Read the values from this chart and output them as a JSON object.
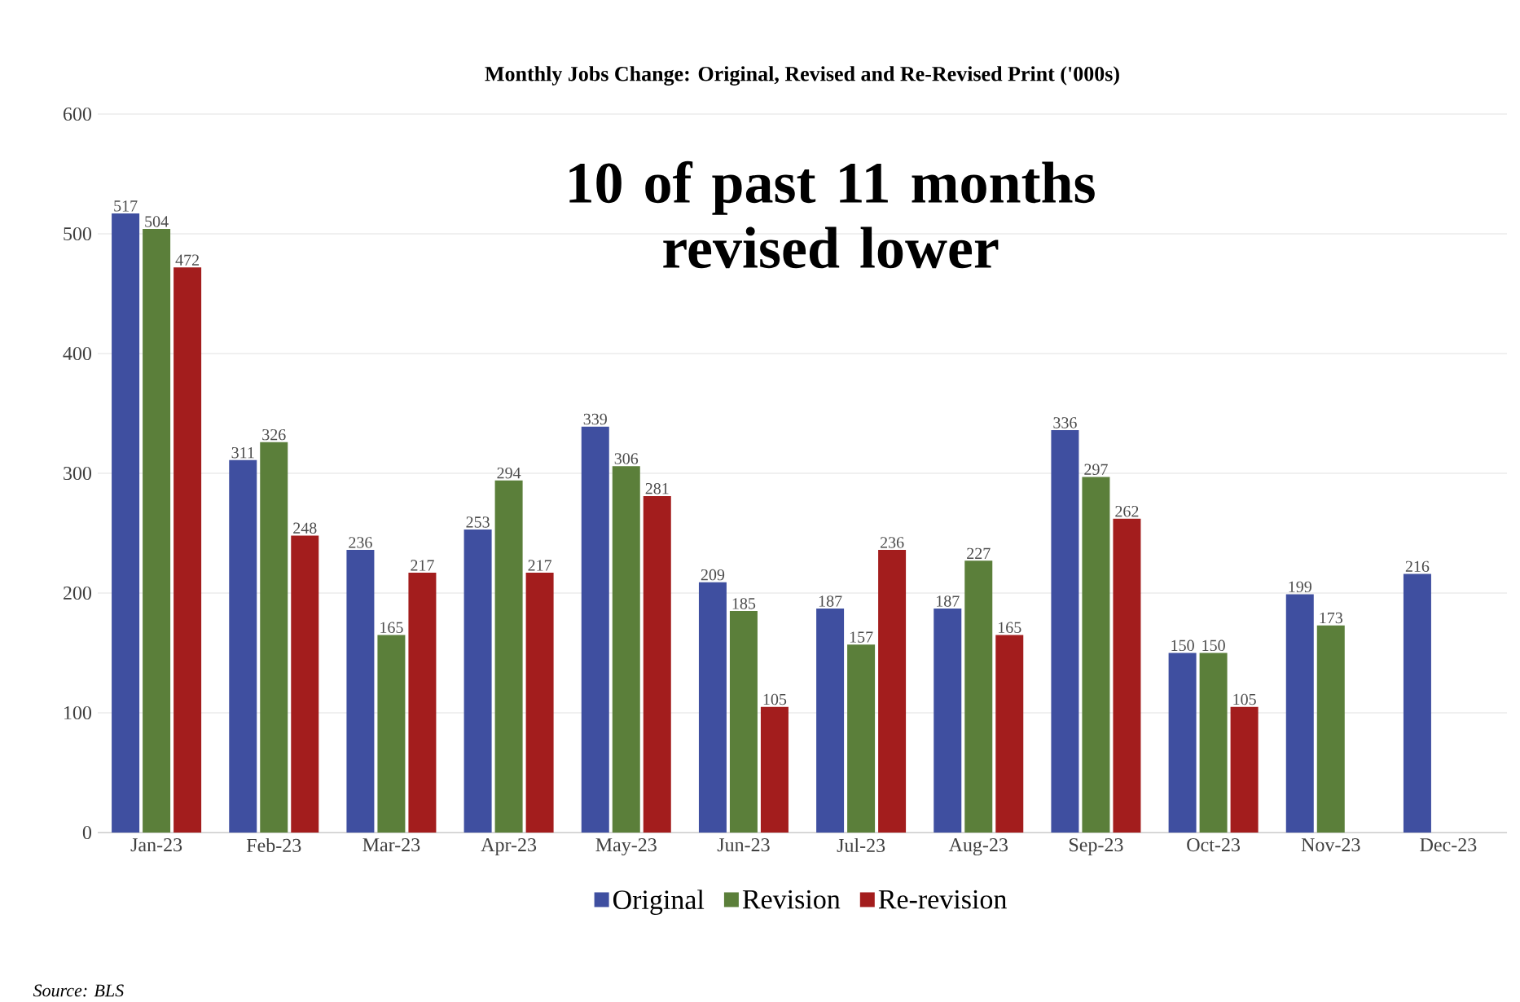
{
  "chart_data": {
    "type": "bar",
    "title": "Monthly Jobs Change: Original, Revised and Re-Revised Print ('000s)",
    "categories": [
      "Jan-23",
      "Feb-23",
      "Mar-23",
      "Apr-23",
      "May-23",
      "Jun-23",
      "Jul-23",
      "Aug-23",
      "Sep-23",
      "Oct-23",
      "Nov-23",
      "Dec-23"
    ],
    "series": [
      {
        "name": "Original",
        "color": "#3f4fa0",
        "values": [
          517,
          311,
          236,
          253,
          339,
          209,
          187,
          187,
          336,
          150,
          199,
          216
        ],
        "value_labels": [
          "517",
          "311",
          "236",
          "253",
          "339",
          "209",
          "187",
          "187",
          "336",
          "150",
          "199",
          "216"
        ]
      },
      {
        "name": "Revision",
        "color": "#5b7f3a",
        "values": [
          504,
          326,
          165,
          294,
          306,
          185,
          157,
          227,
          297,
          150,
          173,
          null
        ],
        "value_labels": [
          "504",
          "326",
          "165",
          "294",
          "306",
          "185",
          "157",
          "227",
          "297",
          "150",
          "173",
          null
        ]
      },
      {
        "name": "Re-revision",
        "color": "#a31d1d",
        "values": [
          472,
          248,
          217,
          217,
          281,
          105,
          236,
          165,
          262,
          105,
          null,
          null
        ],
        "value_labels": [
          "472",
          "248",
          "217",
          "217",
          "281",
          "105",
          "236",
          "165",
          "262",
          "105",
          null,
          null
        ]
      }
    ],
    "ylim": [
      0,
      600
    ],
    "yticks": [
      0,
      100,
      200,
      300,
      400,
      500,
      600
    ],
    "grid": "y",
    "legend": "bottom",
    "annotations": [
      "10 of past 11 months revised lower",
      "Source: BLS"
    ]
  }
}
